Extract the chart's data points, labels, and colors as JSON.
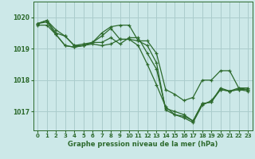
{
  "background_color": "#cce8e8",
  "grid_color": "#aacccc",
  "line_color": "#2d6a2d",
  "title": "Graphe pression niveau de la mer (hPa)",
  "xlim": [
    -0.5,
    23.5
  ],
  "ylim": [
    1016.4,
    1020.5
  ],
  "yticks": [
    1017,
    1018,
    1019,
    1020
  ],
  "xticks": [
    0,
    1,
    2,
    3,
    4,
    5,
    6,
    7,
    8,
    9,
    10,
    11,
    12,
    13,
    14,
    15,
    16,
    17,
    18,
    19,
    20,
    21,
    22,
    23
  ],
  "series": [
    [
      1019.8,
      1019.9,
      1019.6,
      1019.4,
      1019.1,
      1019.1,
      1019.2,
      1019.4,
      1019.65,
      1019.3,
      1019.3,
      1019.25,
      1019.1,
      1018.55,
      1017.05,
      1016.9,
      1016.85,
      1016.7,
      1017.25,
      1017.3,
      1017.7,
      1017.65,
      1017.7,
      1017.7
    ],
    [
      1019.8,
      1019.9,
      1019.5,
      1019.4,
      1019.1,
      1019.15,
      1019.2,
      1019.5,
      1019.7,
      1019.75,
      1019.75,
      1019.25,
      1019.25,
      1018.85,
      1017.7,
      1017.55,
      1017.35,
      1017.45,
      1018.0,
      1018.0,
      1018.3,
      1018.3,
      1017.75,
      1017.75
    ],
    [
      1019.8,
      1019.85,
      1019.45,
      1019.1,
      1019.05,
      1019.1,
      1019.2,
      1019.2,
      1019.35,
      1019.15,
      1019.35,
      1019.35,
      1018.85,
      1018.35,
      1017.1,
      1017.0,
      1016.9,
      1016.7,
      1017.25,
      1017.3,
      1017.75,
      1017.65,
      1017.75,
      1017.7
    ],
    [
      1019.75,
      1019.75,
      1019.45,
      1019.1,
      1019.05,
      1019.1,
      1019.15,
      1019.1,
      1019.15,
      1019.3,
      1019.3,
      1019.1,
      1018.5,
      1017.85,
      1017.15,
      1016.9,
      1016.8,
      1016.65,
      1017.2,
      1017.35,
      1017.7,
      1017.65,
      1017.7,
      1017.65
    ]
  ]
}
